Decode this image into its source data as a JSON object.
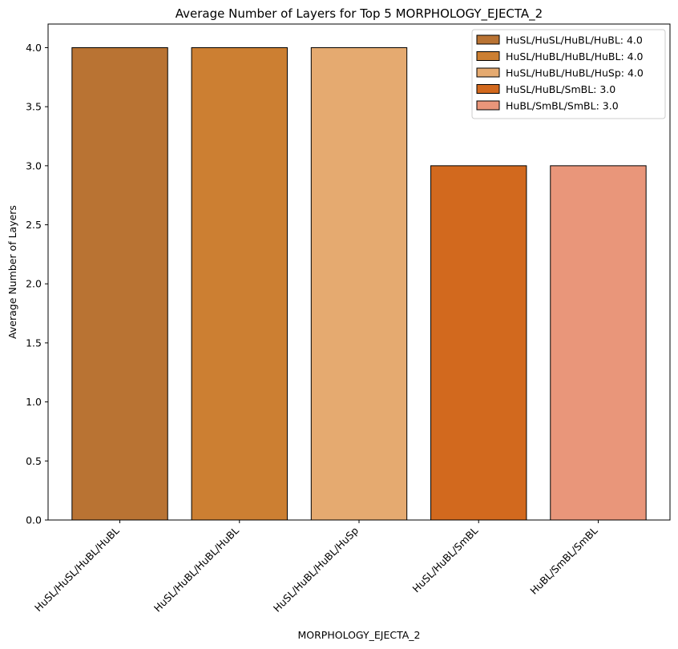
{
  "chart_data": {
    "type": "bar",
    "title": "Average Number of Layers for Top 5 MORPHOLOGY_EJECTA_2",
    "xlabel": "MORPHOLOGY_EJECTA_2",
    "ylabel": "Average Number of Layers",
    "categories": [
      "HuSL/HuSL/HuBL/HuBL",
      "HuSL/HuBL/HuBL/HuBL",
      "HuSL/HuBL/HuBL/HuSp",
      "HuSL/HuBL/SmBL",
      "HuBL/SmBL/SmBL"
    ],
    "values": [
      4.0,
      4.0,
      4.0,
      3.0,
      3.0
    ],
    "colors": [
      "#b97333",
      "#cc7f32",
      "#e5aa70",
      "#d2691e",
      "#e9967a"
    ],
    "ylim": [
      0,
      4.2
    ],
    "yticks": [
      "0.0",
      "0.5",
      "1.0",
      "1.5",
      "2.0",
      "2.5",
      "3.0",
      "3.5",
      "4.0"
    ],
    "grid": false,
    "legend_position": "top-right",
    "legend": [
      "HuSL/HuSL/HuBL/HuBL: 4.0",
      "HuSL/HuBL/HuBL/HuBL: 4.0",
      "HuSL/HuBL/HuBL/HuSp: 4.0",
      "HuSL/HuBL/SmBL: 3.0",
      "HuBL/SmBL/SmBL: 3.0"
    ]
  }
}
